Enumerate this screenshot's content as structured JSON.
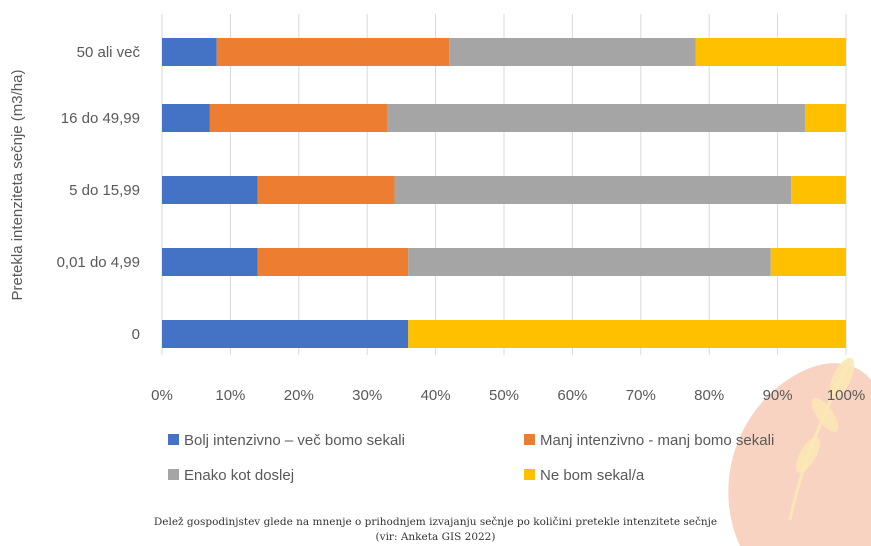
{
  "chart_data": {
    "type": "bar",
    "orientation": "horizontal",
    "stacked": "percent",
    "ylabel": "Pretekla intenziteta sečnje (m3/ha)",
    "categories": [
      "50 ali več",
      "16 do 49,99",
      "5 do 15,99",
      "0,01 do 4,99",
      "0"
    ],
    "series": [
      {
        "name": "Bolj intenzivno – več bomo sekali",
        "color": "#4472c4",
        "values": [
          8,
          7,
          14,
          14,
          36
        ]
      },
      {
        "name": "Manj intenzivno - manj bomo sekali",
        "color": "#ed7d31",
        "values": [
          34,
          26,
          20,
          22,
          0
        ]
      },
      {
        "name": "Enako kot doslej",
        "color": "#a5a5a5",
        "values": [
          36,
          61,
          58,
          53,
          0
        ]
      },
      {
        "name": "Ne bom sekal/a",
        "color": "#ffc000",
        "values": [
          22,
          6,
          8,
          11,
          64
        ]
      }
    ],
    "xticks": [
      "0%",
      "10%",
      "20%",
      "30%",
      "40%",
      "50%",
      "60%",
      "70%",
      "80%",
      "90%",
      "100%"
    ],
    "xlim": [
      0,
      100
    ],
    "legend_position": "bottom",
    "grid": true
  },
  "caption": {
    "line1": "Delež gospodinjstev glede na mnenje o prihodnjem izvajanju sečnje po količini pretekle intenzitete sečnje",
    "line2": "(vir: Anketa GIS 2022)"
  }
}
